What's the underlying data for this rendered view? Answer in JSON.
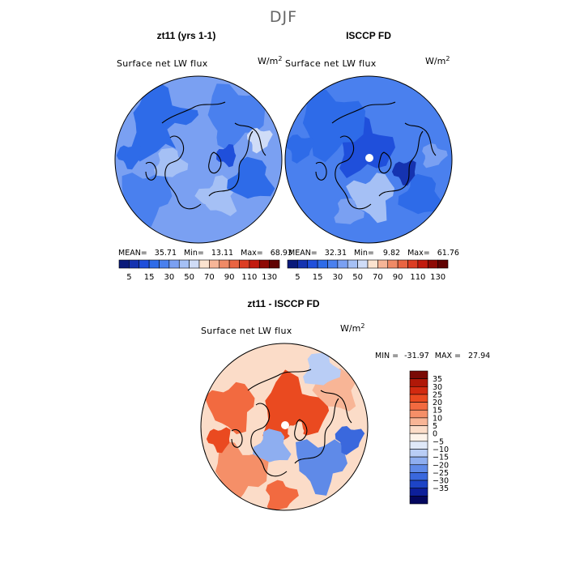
{
  "season": "DJF",
  "chart_data": [
    {
      "type": "heatmap",
      "projection": "north polar stereographic",
      "title": "zt11 (yrs 1-1)",
      "field_label": "Surface net LW flux",
      "units": "W/m",
      "units_exponent": "2",
      "stats": {
        "mean_label": "MEAN=",
        "mean": "35.71",
        "min_label": "Min=",
        "min": "13.11",
        "max_label": "Max=",
        "max": "68.93"
      },
      "colorbar": {
        "levels": [
          5,
          10,
          15,
          20,
          30,
          40,
          50,
          60,
          70,
          80,
          90,
          100,
          110,
          120,
          130
        ],
        "tick_labels": [
          "5",
          "15",
          "30",
          "50",
          "70",
          "90",
          "110",
          "130"
        ],
        "colors": [
          "#0a1a7a",
          "#1533b0",
          "#1f4fdb",
          "#2e6be8",
          "#4a80ee",
          "#7aa0f2",
          "#a5c0f5",
          "#cfdcf7",
          "#fbe3cf",
          "#f6b597",
          "#f08a66",
          "#e96442",
          "#dc3d23",
          "#c21a0e",
          "#8e0a05",
          "#600303"
        ]
      }
    },
    {
      "type": "heatmap",
      "projection": "north polar stereographic",
      "title": "ISCCP FD",
      "field_label": "Surface net LW flux",
      "units": "W/m",
      "units_exponent": "2",
      "stats": {
        "mean_label": "MEAN=",
        "mean": "32.31",
        "min_label": "Min=",
        "min": "9.82",
        "max_label": "Max=",
        "max": "61.76"
      },
      "colorbar": {
        "levels": [
          5,
          10,
          15,
          20,
          30,
          40,
          50,
          60,
          70,
          80,
          90,
          100,
          110,
          120,
          130
        ],
        "tick_labels": [
          "5",
          "15",
          "30",
          "50",
          "70",
          "90",
          "110",
          "130"
        ],
        "colors": [
          "#0a1a7a",
          "#1533b0",
          "#1f4fdb",
          "#2e6be8",
          "#4a80ee",
          "#7aa0f2",
          "#a5c0f5",
          "#cfdcf7",
          "#fbe3cf",
          "#f6b597",
          "#f08a66",
          "#e96442",
          "#dc3d23",
          "#c21a0e",
          "#8e0a05",
          "#600303"
        ]
      }
    },
    {
      "type": "heatmap",
      "projection": "north polar stereographic",
      "title": "zt11 - ISCCP FD",
      "field_label": "Surface net LW flux",
      "units": "W/m",
      "units_exponent": "2",
      "stats": {
        "min_label": "MIN =",
        "min": "-31.97",
        "max_label": "MAX =",
        "max": "27.94"
      },
      "colorbar": {
        "orientation": "vertical",
        "levels": [
          35,
          30,
          25,
          20,
          15,
          10,
          5,
          0,
          -5,
          -10,
          -15,
          -20,
          -25,
          -30,
          -35
        ],
        "tick_labels": [
          "35",
          "30",
          "25",
          "20",
          "15",
          "10",
          "5",
          "0",
          "−5",
          "−10",
          "−15",
          "−20",
          "−25",
          "−30",
          "−35"
        ],
        "colors": [
          "#7a0a05",
          "#b01808",
          "#d22a10",
          "#ea4a20",
          "#f26a40",
          "#f58f68",
          "#f8b596",
          "#fbdcc8",
          "#fdf3ea",
          "#dfe8f8",
          "#b9cdf5",
          "#8eaef0",
          "#5f8ae8",
          "#3a68dd",
          "#1d44c6",
          "#0d1f9a",
          "#04075e"
        ]
      }
    }
  ]
}
